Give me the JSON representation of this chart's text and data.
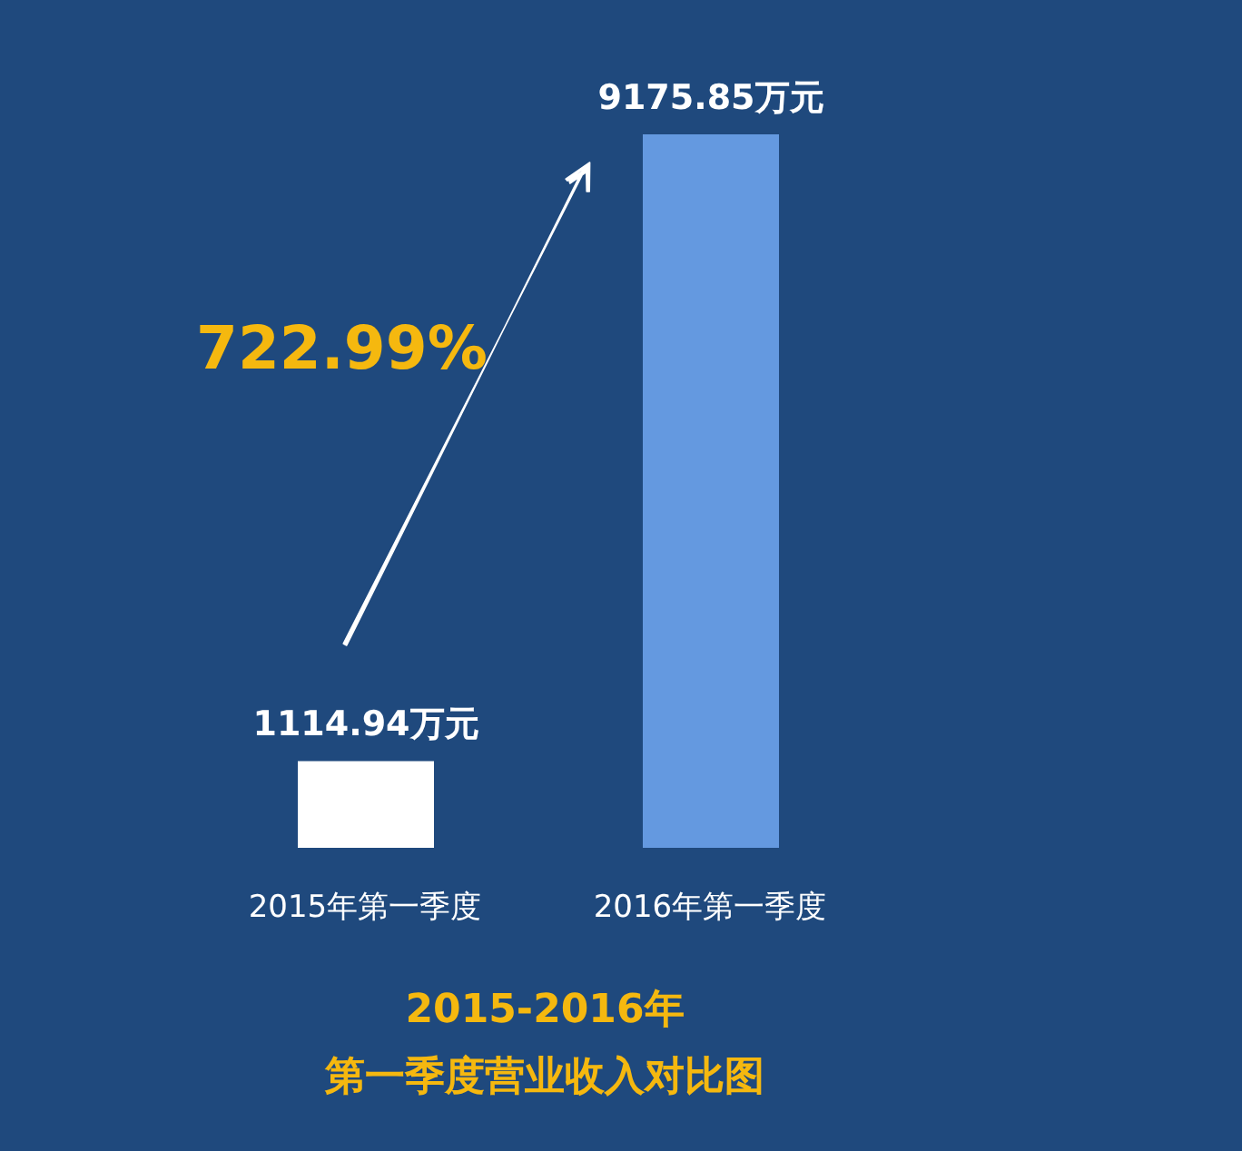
{
  "chart_data": {
    "type": "bar",
    "title": "2015-2016年",
    "subtitle": "第一季度营业收入对比图",
    "categories": [
      "2015年第一季度",
      "2016年第一季度"
    ],
    "values": [
      1114.94,
      9175.85
    ],
    "colors": [
      "#ffffff",
      "#6499e0"
    ],
    "value_labels": [
      "1114.94万元",
      "9175.85万元"
    ],
    "annotations": [
      "722.99%"
    ]
  }
}
